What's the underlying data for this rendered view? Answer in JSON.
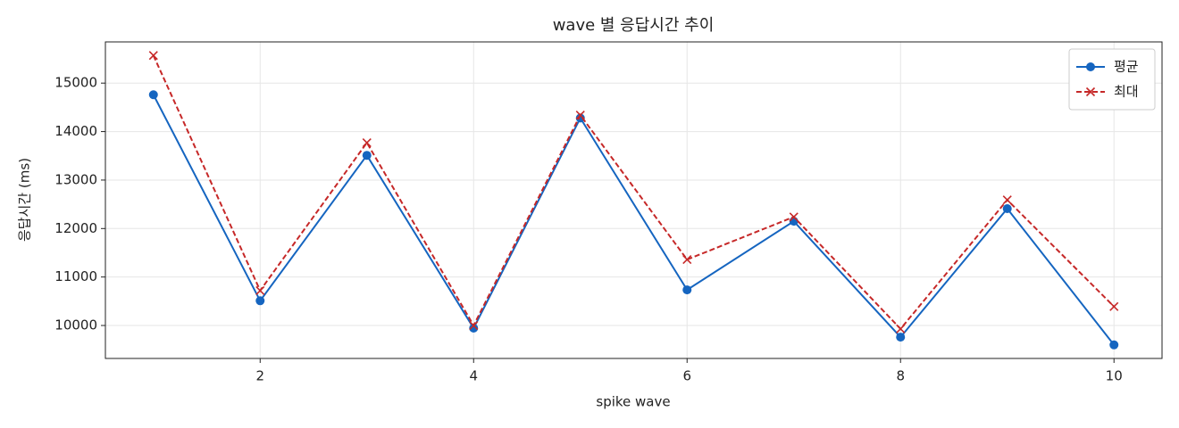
{
  "chart_data": {
    "type": "line",
    "title": "wave 별 응답시간 추이",
    "xlabel": "spike wave",
    "ylabel": "응답시간 (ms)",
    "x": [
      1,
      2,
      3,
      4,
      5,
      6,
      7,
      8,
      9,
      10
    ],
    "series": [
      {
        "name": "평균",
        "color": "#1565c0",
        "marker": "o",
        "linestyle": "solid",
        "values": [
          14760,
          10510,
          13510,
          9945,
          14280,
          10735,
          12150,
          9760,
          12410,
          9600
        ]
      },
      {
        "name": "최대",
        "color": "#c62828",
        "marker": "x",
        "linestyle": "dashed",
        "values": [
          15570,
          10720,
          13770,
          10000,
          14340,
          11360,
          12240,
          9930,
          12590,
          10390
        ]
      }
    ],
    "xlim": [
      0.55,
      10.45
    ],
    "ylim": [
      9320,
      15850
    ],
    "xticks": [
      2,
      4,
      6,
      8,
      10
    ],
    "yticks": [
      10000,
      11000,
      12000,
      13000,
      14000,
      15000
    ],
    "grid": true,
    "legend": "upper right"
  }
}
